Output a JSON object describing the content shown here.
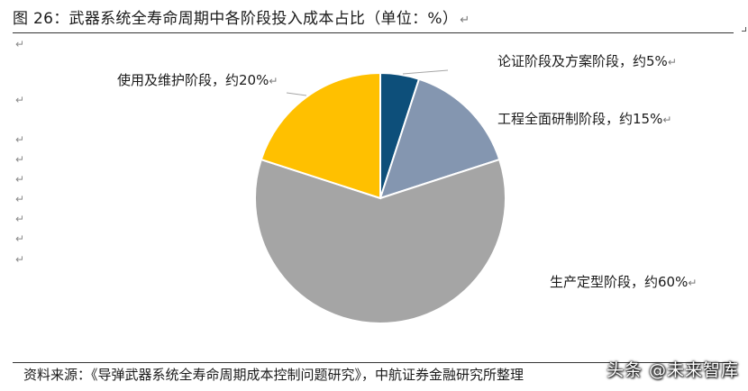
{
  "figure": {
    "title": "图 26：武器系统全寿命周期中各阶段投入成本占比（单位：%）",
    "paragraph_mark": "↵"
  },
  "source": "资料来源：《导弹武器系统全寿命周期成本控制问题研究》，中航证券金融研究所整理",
  "watermark": "头条 @未来智库",
  "chart_data": {
    "type": "pie",
    "title": "图 26：武器系统全寿命周期中各阶段投入成本占比（单位：%）",
    "unit": "%",
    "start_angle_deg": 0,
    "direction": "clockwise",
    "slices": [
      {
        "label": "论证阶段及方案阶段，约5%",
        "name": "论证阶段及方案阶段",
        "value": 5,
        "color": "#0d4f7a"
      },
      {
        "label": "工程全面研制阶段，约15%",
        "name": "工程全面研制阶段",
        "value": 15,
        "color": "#8496b0"
      },
      {
        "label": "生产定型阶段，约60%",
        "name": "生产定型阶段",
        "value": 60,
        "color": "#a5a5a5"
      },
      {
        "label": "使用及维护阶段，约20%",
        "name": "使用及维护阶段",
        "value": 20,
        "color": "#ffc000"
      }
    ]
  }
}
